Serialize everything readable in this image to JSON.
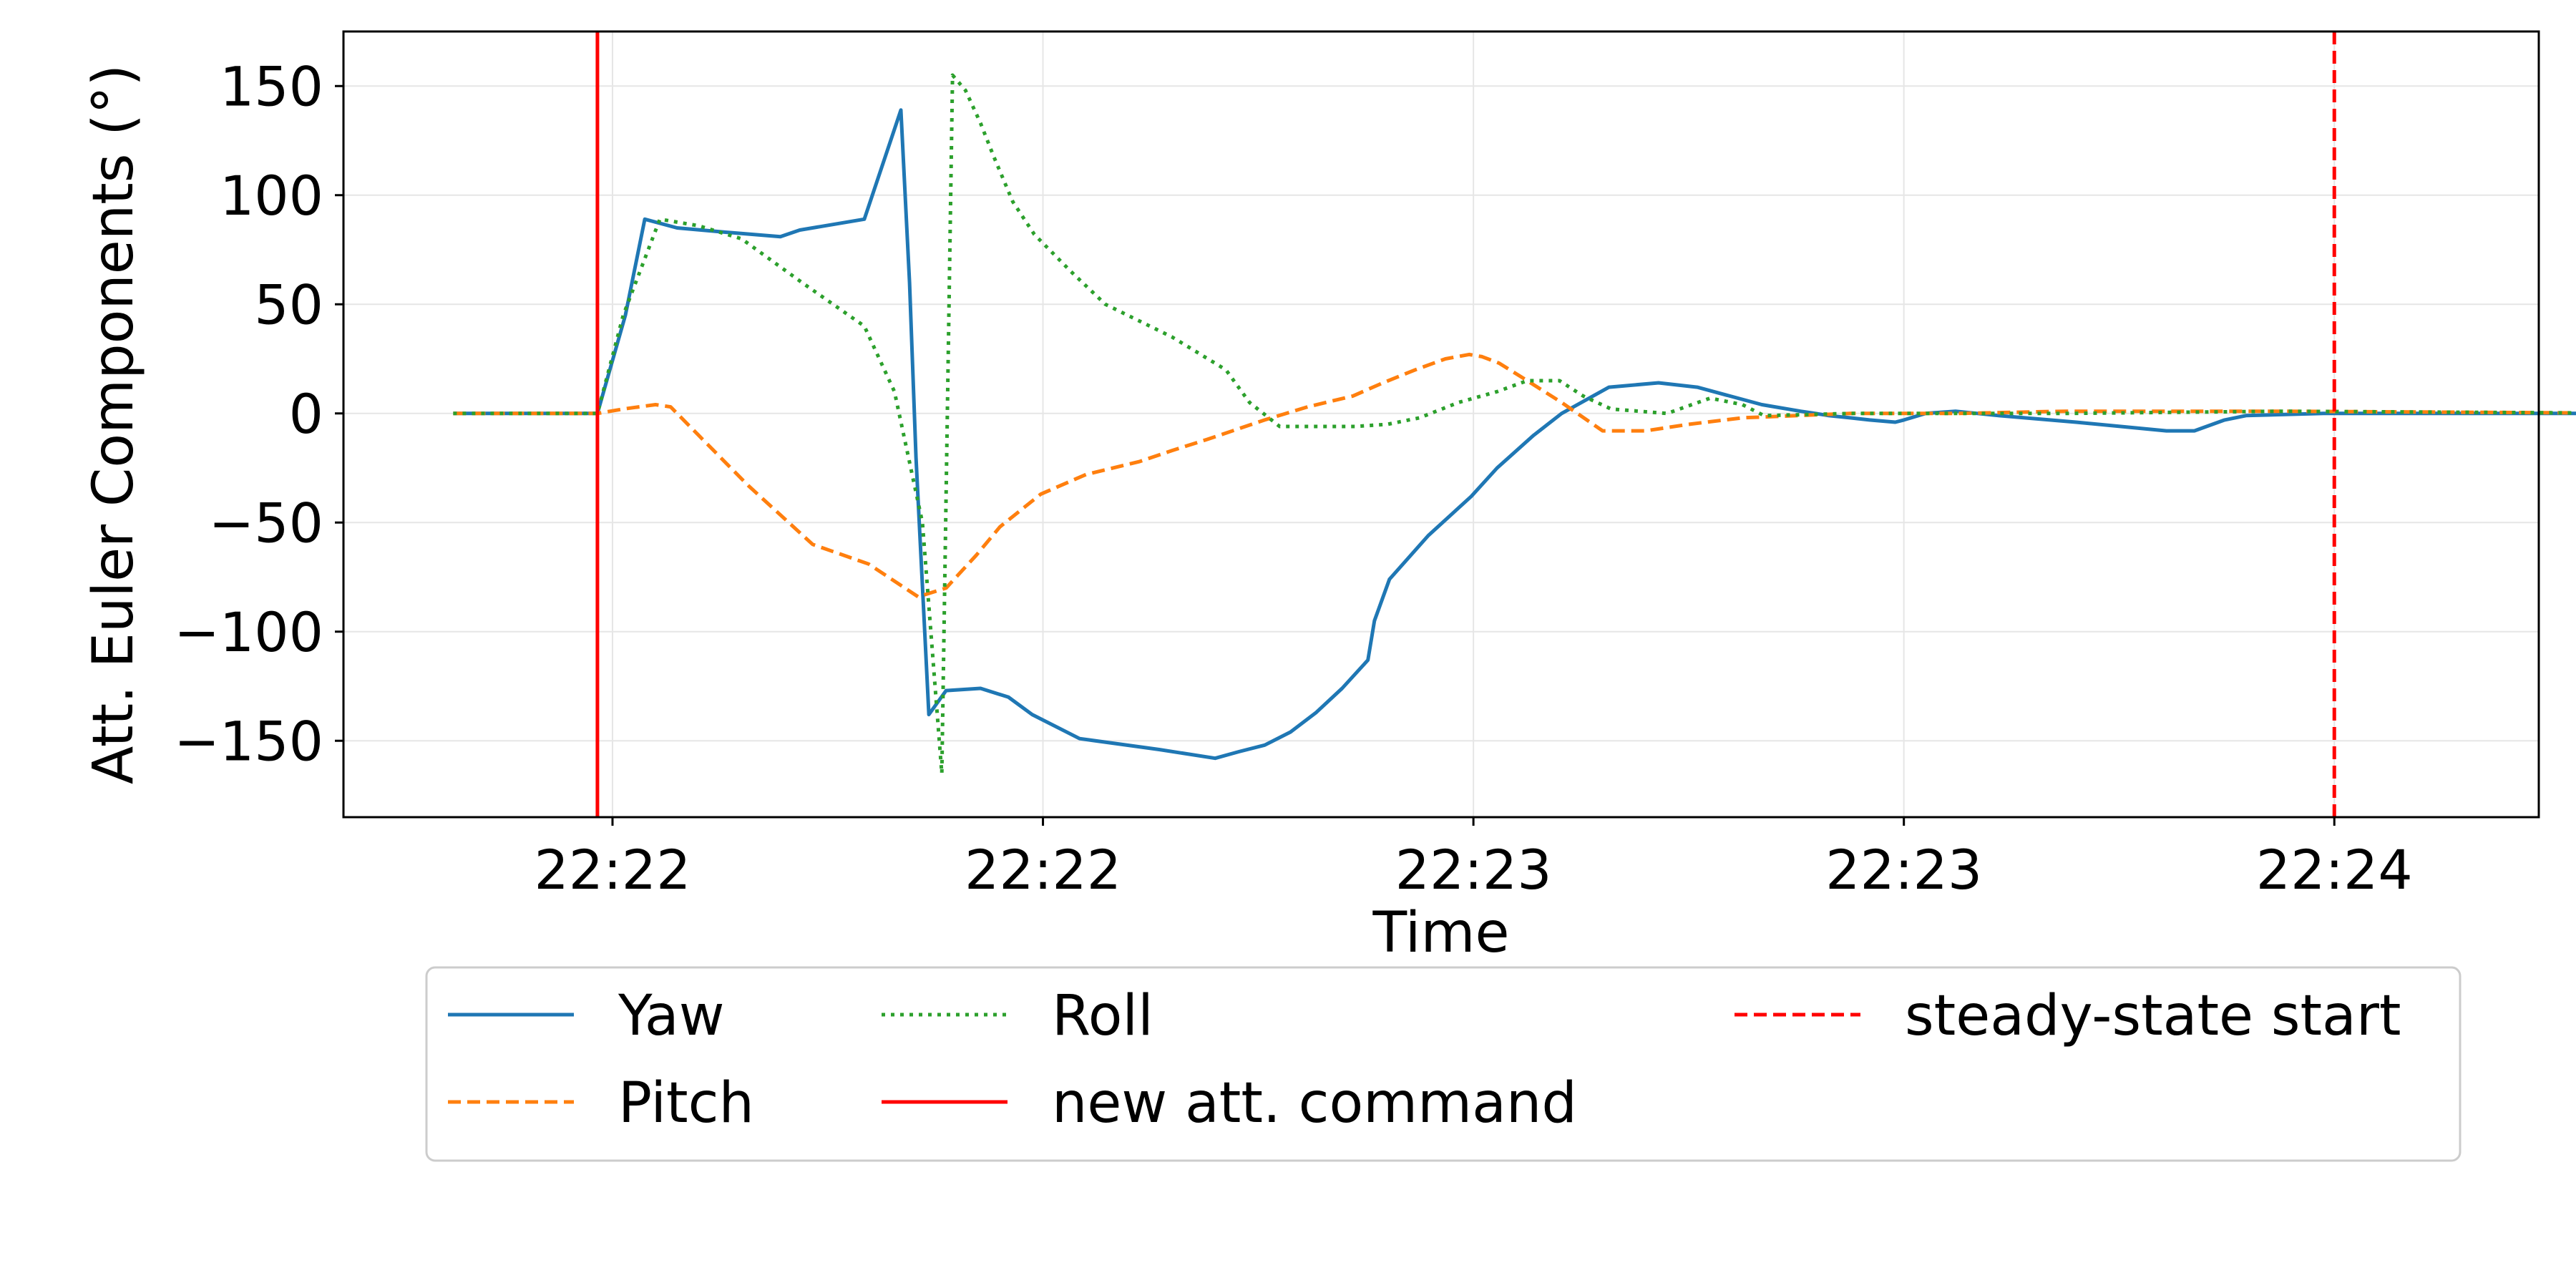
{
  "chart_data": {
    "type": "line",
    "title": "",
    "xlabel": "Time",
    "ylabel": "Att. Euler Components (°)",
    "x_unit": "seconds (relative time; tick labels show clock time)",
    "xlim": [
      0,
      102
    ],
    "ylim": [
      -185,
      175
    ],
    "y_ticks": [
      -150,
      -100,
      -50,
      0,
      50,
      100,
      150
    ],
    "x_ticks": [
      {
        "x": 12.5,
        "label": "22:22"
      },
      {
        "x": 32.5,
        "label": "22:22"
      },
      {
        "x": 52.5,
        "label": "22:23"
      },
      {
        "x": 72.5,
        "label": "22:23"
      },
      {
        "x": 92.5,
        "label": "22:24"
      }
    ],
    "grid": true,
    "legend_position": "below plot",
    "series": [
      {
        "name": "Yaw",
        "color": "#1f77b4",
        "dash": "solid",
        "x": [
          5.1,
          11.8,
          13.1,
          14,
          15.5,
          17.8,
          20.3,
          21.2,
          24.2,
          25.9,
          26.3,
          26.6,
          27.2,
          28.0,
          29.6,
          30.9,
          32.0,
          34.2,
          37.9,
          40.5,
          41.6,
          42.8,
          44.0,
          45.2,
          46.4,
          47.6,
          47.9,
          48.6,
          50.4,
          52.4,
          53.6,
          55.3,
          56.6,
          58.8,
          61.1,
          62.9,
          65.9,
          67.7,
          68.4,
          69.0,
          70.0,
          70.9,
          72.1,
          72.5,
          73.5,
          74.9,
          76.9,
          80.5,
          84.7,
          86.0,
          87.4,
          88.4,
          92.0,
          108.5
        ],
        "y": [
          0,
          0,
          45,
          89,
          85,
          83,
          81,
          84,
          89,
          139,
          60,
          -20,
          -138,
          -127,
          -126,
          -130,
          -138,
          -149,
          -154,
          -158,
          -155,
          -152,
          -146,
          -137,
          -126,
          -113,
          -95,
          -76,
          -56,
          -38,
          -25,
          -10,
          0,
          12,
          14,
          12,
          4,
          1,
          0,
          -1,
          -2,
          -3,
          -4,
          -3,
          0,
          1,
          -1,
          -4,
          -8,
          -8,
          -3,
          -1,
          0,
          0
        ]
      },
      {
        "name": "Pitch",
        "color": "#ff7f0e",
        "dash": "dashed",
        "x": [
          5.1,
          11.8,
          13.0,
          14.5,
          15.2,
          16.5,
          18.8,
          21.8,
          24.4,
          26.7,
          28.0,
          29.4,
          30.5,
          32.4,
          34.5,
          37.0,
          38.5,
          40.1,
          41.6,
          42.8,
          44.8,
          46.9,
          48.3,
          49.8,
          51.2,
          52.3,
          52.9,
          53.7,
          55.0,
          56.6,
          58.5,
          60.5,
          62.5,
          65.0,
          70.0,
          75.0,
          80.0,
          85.0,
          90.0,
          108.5
        ],
        "y": [
          0,
          0,
          2,
          4,
          3,
          -10,
          -33,
          -60,
          -69,
          -84,
          -80,
          -65,
          -52,
          -37,
          -28,
          -22,
          -17,
          -12,
          -7,
          -3,
          3,
          8,
          14,
          20,
          25,
          27,
          26,
          23,
          15,
          5,
          -8,
          -8,
          -5,
          -2,
          0,
          0,
          1,
          1,
          1,
          0
        ]
      },
      {
        "name": "Roll",
        "color": "#2ca02c",
        "dash": "dotted",
        "x": [
          5.1,
          11.8,
          13.0,
          14.7,
          16.5,
          18.5,
          21.3,
          24.2,
          25.6,
          26.9,
          27.8,
          28.3,
          28.9,
          29.6,
          30.2,
          31.1,
          32.1,
          33.8,
          35.4,
          38.5,
          41.0,
          42.1,
          43.5,
          47.0,
          48.5,
          50.0,
          51.8,
          53.6,
          55.0,
          56.5,
          57.6,
          58.9,
          61.5,
          63.5,
          65.0,
          66.0,
          70.0,
          80.0,
          90.0,
          108.5
        ],
        "y": [
          0,
          0,
          45,
          89,
          86,
          80,
          60,
          40,
          10,
          -50,
          -165,
          155,
          148,
          133,
          118,
          97,
          82,
          65,
          50,
          35,
          20,
          5,
          -6,
          -6,
          -5,
          -2,
          5,
          10,
          15,
          15,
          8,
          2,
          0,
          7,
          4,
          -1,
          0,
          0,
          1,
          0
        ]
      }
    ],
    "events": [
      {
        "name": "new att. command",
        "x": 11.8,
        "color": "#ff0000",
        "dash": "solid"
      },
      {
        "name": "steady-state start",
        "x": 92.5,
        "color": "#ff0000",
        "dash": "dashed"
      }
    ]
  }
}
